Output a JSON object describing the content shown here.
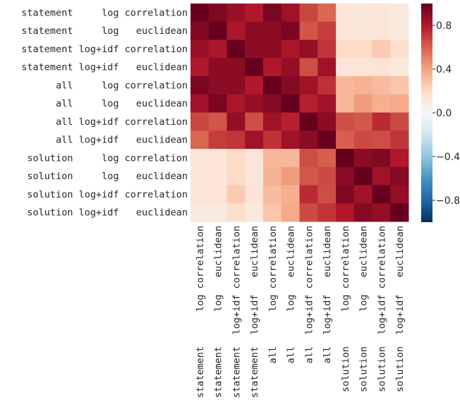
{
  "chart_data": {
    "type": "heatmap",
    "row_labels": [
      "statement     log correlation",
      "statement     log   euclidean",
      "statement log+idf correlation",
      "statement log+idf   euclidean",
      "      all     log correlation",
      "      all     log   euclidean",
      "      all log+idf correlation",
      "      all log+idf   euclidean",
      " solution     log correlation",
      " solution     log   euclidean",
      " solution log+idf correlation",
      " solution log+idf   euclidean"
    ],
    "column_labels": [
      [
        "statement",
        "log correlation"
      ],
      [
        "statement",
        "log   euclidean"
      ],
      [
        "statement",
        "log+idf correlation"
      ],
      [
        "statement",
        "log+idf   euclidean"
      ],
      [
        "all",
        "log correlation"
      ],
      [
        "all",
        "log   euclidean"
      ],
      [
        "all",
        "log+idf correlation"
      ],
      [
        "all",
        "log+idf   euclidean"
      ],
      [
        "solution",
        "log correlation"
      ],
      [
        "solution",
        "log   euclidean"
      ],
      [
        "solution",
        "log+idf correlation"
      ],
      [
        "solution",
        "log+idf   euclidean"
      ]
    ],
    "values": [
      [
        1.0,
        0.93,
        0.87,
        0.8,
        0.95,
        0.85,
        0.67,
        0.58,
        0.13,
        0.12,
        0.13,
        0.1
      ],
      [
        0.93,
        1.0,
        0.82,
        0.9,
        0.9,
        0.95,
        0.63,
        0.7,
        0.13,
        0.12,
        0.13,
        0.1
      ],
      [
        0.87,
        0.82,
        1.0,
        0.9,
        0.9,
        0.82,
        0.88,
        0.72,
        0.2,
        0.2,
        0.26,
        0.18
      ],
      [
        0.8,
        0.9,
        0.9,
        1.0,
        0.8,
        0.88,
        0.65,
        0.85,
        0.13,
        0.13,
        0.14,
        0.11
      ],
      [
        0.95,
        0.9,
        0.9,
        0.8,
        1.0,
        0.92,
        0.85,
        0.73,
        0.33,
        0.35,
        0.32,
        0.28
      ],
      [
        0.85,
        0.95,
        0.82,
        0.88,
        0.92,
        1.0,
        0.78,
        0.85,
        0.33,
        0.43,
        0.36,
        0.38
      ],
      [
        0.67,
        0.63,
        0.88,
        0.65,
        0.85,
        0.78,
        1.0,
        0.9,
        0.65,
        0.62,
        0.75,
        0.66
      ],
      [
        0.58,
        0.7,
        0.72,
        0.85,
        0.73,
        0.85,
        0.9,
        1.0,
        0.6,
        0.66,
        0.65,
        0.72
      ],
      [
        0.13,
        0.13,
        0.2,
        0.13,
        0.33,
        0.33,
        0.65,
        0.6,
        1.0,
        0.9,
        0.93,
        0.8
      ],
      [
        0.12,
        0.12,
        0.2,
        0.13,
        0.35,
        0.43,
        0.62,
        0.66,
        0.9,
        1.0,
        0.85,
        0.92
      ],
      [
        0.13,
        0.13,
        0.26,
        0.14,
        0.32,
        0.36,
        0.75,
        0.65,
        0.93,
        0.85,
        1.0,
        0.88
      ],
      [
        0.1,
        0.1,
        0.18,
        0.11,
        0.28,
        0.38,
        0.66,
        0.72,
        0.8,
        0.92,
        0.88,
        1.0
      ]
    ],
    "vmin": -1.0,
    "vmax": 1.0,
    "colormap": "RdBu_r",
    "colormap_stops": [
      "#053061",
      "#2166ac",
      "#4393c3",
      "#92c5de",
      "#d1e5f0",
      "#f7f7f7",
      "#fddbc7",
      "#f4a582",
      "#d6604d",
      "#b2182b",
      "#67001f"
    ],
    "colorbar_ticks": [
      0.8,
      0.4,
      0.0,
      -0.4,
      -0.8
    ],
    "colorbar_tick_labels": [
      "0.8",
      "0.4",
      "0.0",
      "−0.4",
      "−0.8"
    ],
    "colorbar_position": "right",
    "grid": false,
    "title": "",
    "xlabel": "",
    "ylabel": ""
  }
}
